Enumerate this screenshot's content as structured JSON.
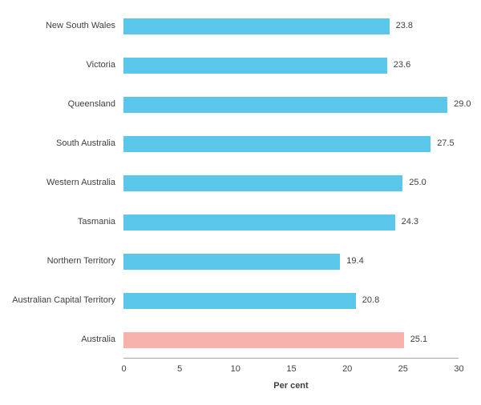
{
  "chart_data": {
    "type": "bar",
    "orientation": "horizontal",
    "categories": [
      "New South Wales",
      "Victoria",
      "Queensland",
      "South Australia",
      "Western Australia",
      "Tasmania",
      "Northern Territory",
      "Australian Capital Territory",
      "Australia"
    ],
    "values": [
      23.8,
      23.6,
      29.0,
      27.5,
      25.0,
      24.3,
      19.4,
      20.8,
      25.1
    ],
    "value_labels": [
      "23.8",
      "23.6",
      "29.0",
      "27.5",
      "25.0",
      "24.3",
      "19.4",
      "20.8",
      "25.1"
    ],
    "bar_colors": [
      "#5bc8eb",
      "#5bc8eb",
      "#5bc8eb",
      "#5bc8eb",
      "#5bc8eb",
      "#5bc8eb",
      "#5bc8eb",
      "#5bc8eb",
      "#f8b2ad"
    ],
    "title": "",
    "xlabel": "Per cent",
    "ylabel": "",
    "xlim": [
      0,
      30
    ],
    "xticks": [
      "0",
      "5",
      "10",
      "15",
      "20",
      "25",
      "30"
    ],
    "xtick_values": [
      0,
      5,
      10,
      15,
      20,
      25,
      30
    ],
    "grid": false,
    "legend": null,
    "colors": {
      "state_bar": "#5bc8eb",
      "australia_bar": "#f8b2ad",
      "axis_line": "#a6a6a6",
      "text": "#404040",
      "background": "#ffffff"
    }
  }
}
